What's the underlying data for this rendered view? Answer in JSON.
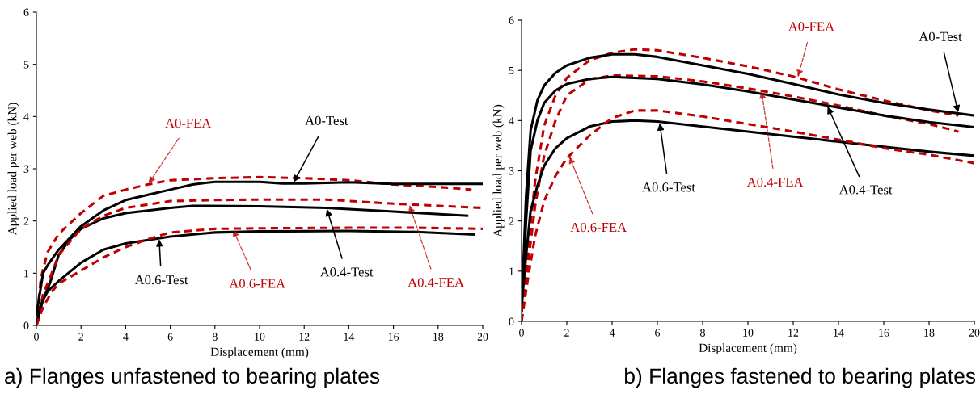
{
  "chart_data": [
    {
      "type": "line",
      "title": "a) Flanges unfastened to bearing plates",
      "xlabel": "Displacement (mm)",
      "ylabel": "Applied load per web (kN)",
      "xlim": [
        0,
        20
      ],
      "ylim": [
        0,
        6
      ],
      "xticks": [
        0,
        2,
        4,
        6,
        8,
        10,
        12,
        14,
        16,
        18,
        20
      ],
      "yticks": [
        0,
        1,
        2,
        3,
        4,
        5,
        6
      ],
      "grid": false,
      "annotations": [
        {
          "text": "A0-FEA",
          "x": 5.0,
          "y": 2.7
        },
        {
          "text": "A0-Test",
          "x": 11.5,
          "y": 2.72
        },
        {
          "text": "A0.4-Test",
          "x": 13.0,
          "y": 2.25
        },
        {
          "text": "A0.4-FEA",
          "x": 16.7,
          "y": 2.32
        },
        {
          "text": "A0.6-Test",
          "x": 5.5,
          "y": 1.67
        },
        {
          "text": "A0.6-FEA",
          "x": 8.8,
          "y": 1.85
        }
      ],
      "series": [
        {
          "color": "#c00000",
          "line_style": "dashed",
          "x": [
            0,
            0.2,
            0.5,
            1,
            2,
            3,
            4,
            5,
            6,
            8,
            10,
            12,
            14,
            16,
            18,
            19.5
          ],
          "values": [
            0,
            0.9,
            1.4,
            1.75,
            2.15,
            2.48,
            2.6,
            2.7,
            2.78,
            2.82,
            2.84,
            2.82,
            2.78,
            2.7,
            2.65,
            2.6
          ]
        },
        {
          "color": "#000000",
          "line_style": "solid",
          "x": [
            0,
            0.3,
            0.5,
            1,
            2,
            3,
            4,
            5,
            6,
            7,
            8,
            10,
            11,
            12,
            14,
            16,
            18,
            20
          ],
          "values": [
            0.2,
            1.0,
            1.15,
            1.45,
            1.9,
            2.2,
            2.4,
            2.5,
            2.6,
            2.7,
            2.75,
            2.75,
            2.72,
            2.72,
            2.74,
            2.71,
            2.71,
            2.71
          ]
        },
        {
          "color": "#000000",
          "line_style": "solid",
          "x": [
            0,
            0.3,
            0.6,
            1,
            1.5,
            2,
            3,
            4,
            6,
            7,
            10,
            13,
            16,
            19.3
          ],
          "values": [
            0,
            0.5,
            0.8,
            1.35,
            1.65,
            1.85,
            2.05,
            2.15,
            2.25,
            2.29,
            2.28,
            2.25,
            2.18,
            2.1
          ]
        },
        {
          "color": "#c00000",
          "line_style": "dashed",
          "x": [
            0,
            0.3,
            0.6,
            1,
            2,
            3,
            4,
            6,
            8,
            10,
            13,
            16,
            20
          ],
          "values": [
            0,
            0.6,
            0.9,
            1.35,
            1.85,
            2.1,
            2.25,
            2.38,
            2.4,
            2.41,
            2.41,
            2.33,
            2.25
          ]
        },
        {
          "color": "#000000",
          "line_style": "solid",
          "x": [
            0,
            0.2,
            0.5,
            1,
            2,
            3,
            4,
            6,
            8,
            10,
            14,
            17,
            19.6
          ],
          "values": [
            0,
            0.4,
            0.65,
            0.85,
            1.2,
            1.45,
            1.57,
            1.7,
            1.78,
            1.8,
            1.81,
            1.79,
            1.74
          ]
        },
        {
          "color": "#c00000",
          "line_style": "dashed",
          "x": [
            0,
            0.3,
            0.7,
            1,
            2,
            3,
            4,
            5,
            6,
            8,
            10,
            14,
            17,
            20
          ],
          "values": [
            0,
            0.35,
            0.65,
            0.8,
            1.05,
            1.3,
            1.5,
            1.65,
            1.78,
            1.85,
            1.86,
            1.87,
            1.87,
            1.85
          ]
        }
      ]
    },
    {
      "type": "line",
      "title": "b) Flanges fastened to bearing plates",
      "xlabel": "Displacement (mm)",
      "ylabel": "Applied load per web (kN)",
      "xlim": [
        0,
        20
      ],
      "ylim": [
        0,
        6
      ],
      "xticks": [
        0,
        2,
        4,
        6,
        8,
        10,
        12,
        14,
        16,
        18,
        20
      ],
      "yticks": [
        0,
        1,
        2,
        3,
        4,
        5,
        6
      ],
      "grid": false,
      "annotations": [
        {
          "text": "A0-FEA",
          "x": 12.2,
          "y": 4.85
        },
        {
          "text": "A0-Test",
          "x": 19.3,
          "y": 4.14
        },
        {
          "text": "A0.4-FEA",
          "x": 10.6,
          "y": 4.6
        },
        {
          "text": "A0.4-Test",
          "x": 13.5,
          "y": 4.3
        },
        {
          "text": "A0.6-Test",
          "x": 6.1,
          "y": 3.97
        },
        {
          "text": "A0.6-FEA",
          "x": 2.1,
          "y": 3.3
        }
      ],
      "series": [
        {
          "color": "#c00000",
          "line_style": "dashed",
          "x": [
            0,
            0.3,
            0.6,
            1,
            1.5,
            2,
            3,
            4,
            5,
            6,
            8,
            10,
            12,
            14,
            16,
            18,
            19.3
          ],
          "values": [
            0,
            1.5,
            2.8,
            3.9,
            4.5,
            4.85,
            5.2,
            5.35,
            5.42,
            5.4,
            5.25,
            5.08,
            4.88,
            4.62,
            4.4,
            4.2,
            4.1
          ]
        },
        {
          "color": "#000000",
          "line_style": "solid",
          "x": [
            0,
            0.2,
            0.4,
            0.7,
            1,
            1.5,
            2,
            3,
            4,
            5,
            6,
            8,
            10,
            12,
            14,
            16,
            18,
            20
          ],
          "values": [
            0.2,
            2.5,
            3.8,
            4.4,
            4.7,
            4.95,
            5.1,
            5.25,
            5.32,
            5.32,
            5.27,
            5.1,
            4.93,
            4.73,
            4.52,
            4.35,
            4.22,
            4.1
          ]
        },
        {
          "color": "#c00000",
          "line_style": "dashed",
          "x": [
            0,
            0.3,
            0.6,
            1,
            1.5,
            2,
            3,
            4,
            6,
            8,
            10,
            12,
            14,
            16,
            18,
            19.3
          ],
          "values": [
            0,
            1.2,
            2.3,
            3.3,
            4.0,
            4.5,
            4.82,
            4.9,
            4.88,
            4.78,
            4.64,
            4.48,
            4.3,
            4.1,
            3.93,
            3.78
          ]
        },
        {
          "color": "#000000",
          "line_style": "solid",
          "x": [
            0,
            0.2,
            0.4,
            0.7,
            1,
            1.5,
            2,
            3,
            4,
            6,
            8,
            10,
            12,
            14,
            16,
            18,
            20
          ],
          "values": [
            0.2,
            2.0,
            3.4,
            4.0,
            4.35,
            4.6,
            4.73,
            4.83,
            4.87,
            4.83,
            4.72,
            4.58,
            4.42,
            4.26,
            4.1,
            3.97,
            3.87
          ]
        },
        {
          "color": "#000000",
          "line_style": "solid",
          "x": [
            0,
            0.2,
            0.4,
            0.7,
            1,
            1.5,
            2,
            3,
            4,
            5,
            6,
            8,
            10,
            12,
            14,
            16,
            18,
            20
          ],
          "values": [
            0.3,
            1.3,
            2.2,
            2.7,
            3.1,
            3.45,
            3.65,
            3.88,
            3.98,
            4.0,
            3.98,
            3.88,
            3.78,
            3.68,
            3.58,
            3.48,
            3.38,
            3.3
          ]
        },
        {
          "color": "#c00000",
          "line_style": "dashed",
          "x": [
            0,
            0.3,
            0.6,
            1,
            1.5,
            2,
            3,
            4,
            5,
            6,
            8,
            10,
            12,
            14,
            16,
            18,
            20
          ],
          "values": [
            0,
            0.9,
            1.7,
            2.4,
            2.9,
            3.25,
            3.7,
            4.05,
            4.2,
            4.2,
            4.08,
            3.93,
            3.78,
            3.62,
            3.45,
            3.32,
            3.15
          ]
        }
      ]
    }
  ]
}
